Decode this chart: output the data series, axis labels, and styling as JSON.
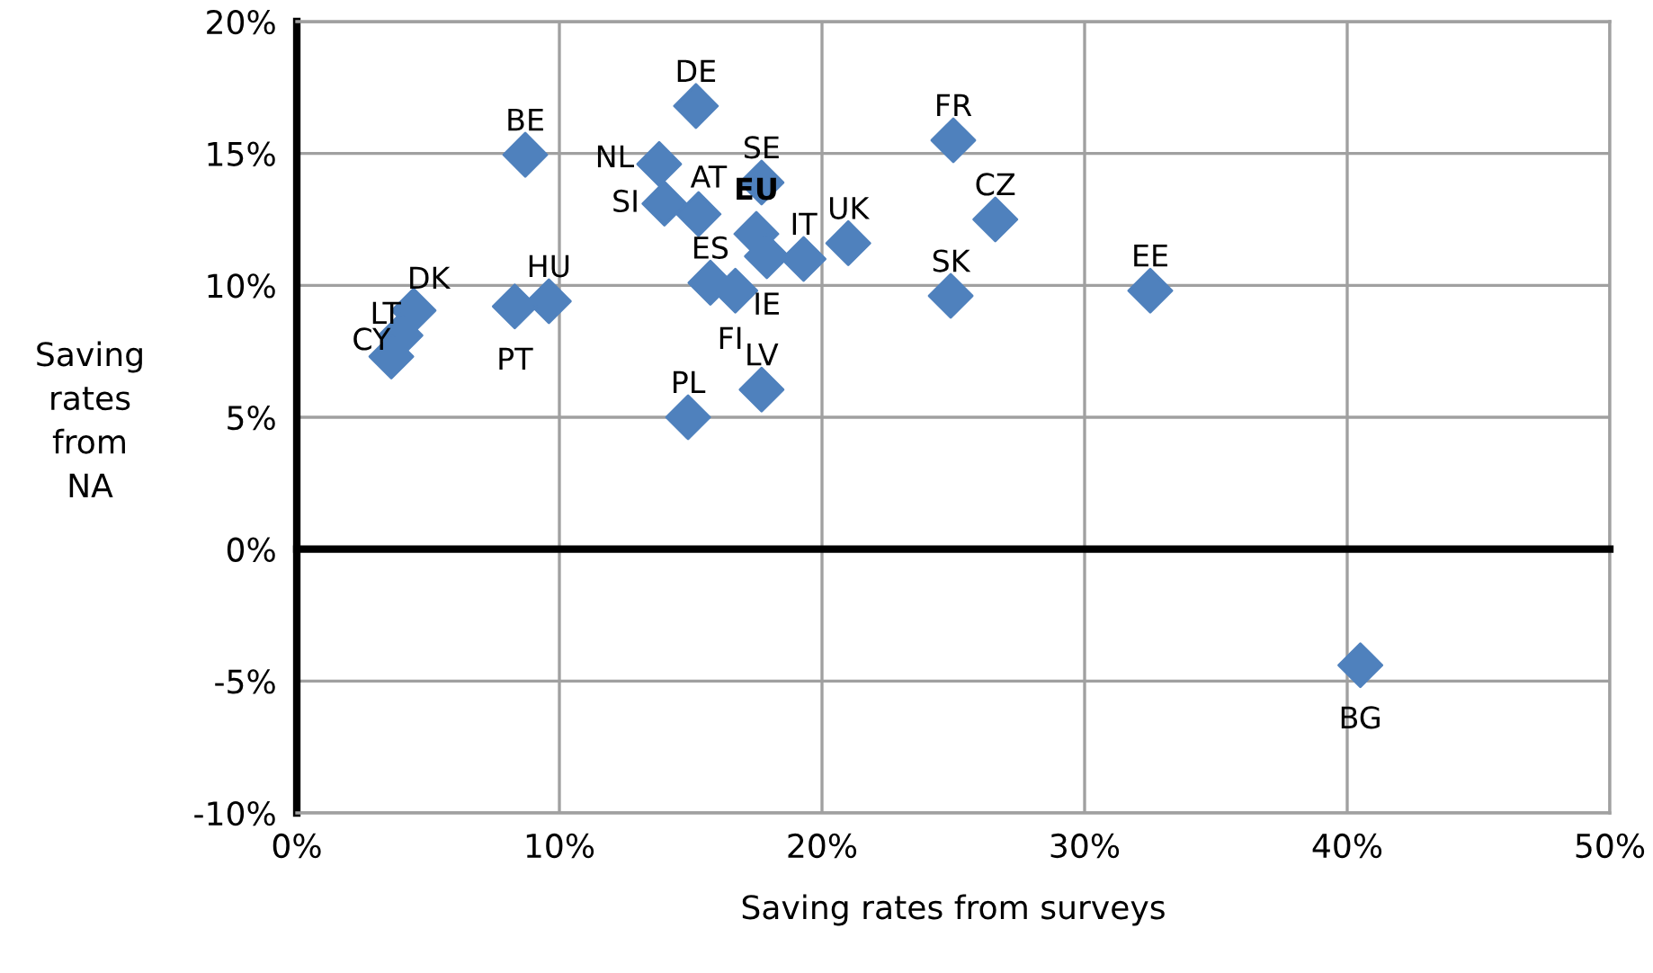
{
  "chart_data": {
    "type": "scatter",
    "xlabel": "Saving rates from surveys",
    "ylabel": "Saving rates from NA",
    "series": [
      {
        "color": "#4f81bd",
        "x": [
          8.7,
          15.2,
          17.7,
          25.0,
          13.8,
          15.3,
          14.0,
          17.5,
          26.6,
          19.3,
          21.0,
          4.45,
          9.6,
          3.95,
          3.6,
          15.75,
          24.9,
          32.5,
          17.9,
          16.7,
          17.7,
          8.3,
          14.9,
          40.5
        ],
        "values": [
          14.95,
          16.8,
          13.9,
          15.5,
          14.6,
          12.7,
          13.1,
          11.95,
          12.5,
          11.0,
          11.6,
          9.05,
          9.4,
          8.1,
          7.3,
          10.1,
          9.6,
          9.8,
          11.1,
          9.8,
          6.05,
          9.2,
          5.0,
          -4.4
        ]
      }
    ],
    "annotations": [
      {
        "text": "BE",
        "x": 8.7,
        "y": 14.95
      },
      {
        "text": "DE",
        "x": 15.2,
        "y": 16.8
      },
      {
        "text": "SE",
        "x": 17.7,
        "y": 13.9
      },
      {
        "text": "FR",
        "x": 25.0,
        "y": 15.5
      },
      {
        "text": "NL",
        "x": 13.8,
        "y": 14.6
      },
      {
        "text": "AT",
        "x": 15.3,
        "y": 12.7
      },
      {
        "text": "SI",
        "x": 14.0,
        "y": 13.1
      },
      {
        "text": "EU",
        "x": 17.5,
        "y": 11.95
      },
      {
        "text": "CZ",
        "x": 26.6,
        "y": 12.5
      },
      {
        "text": "IT",
        "x": 19.3,
        "y": 11.0
      },
      {
        "text": "UK",
        "x": 21.0,
        "y": 11.6
      },
      {
        "text": "DK",
        "x": 4.45,
        "y": 9.05
      },
      {
        "text": "HU",
        "x": 9.6,
        "y": 9.4
      },
      {
        "text": "LT",
        "x": 3.95,
        "y": 8.1
      },
      {
        "text": "CY",
        "x": 3.6,
        "y": 7.3
      },
      {
        "text": "ES",
        "x": 15.75,
        "y": 10.1
      },
      {
        "text": "SK",
        "x": 24.9,
        "y": 9.6
      },
      {
        "text": "EE",
        "x": 32.5,
        "y": 9.8
      },
      {
        "text": "IE",
        "x": 17.9,
        "y": 11.1
      },
      {
        "text": "FI",
        "x": 16.7,
        "y": 9.8
      },
      {
        "text": "LV",
        "x": 17.7,
        "y": 6.05
      },
      {
        "text": "PT",
        "x": 8.3,
        "y": 9.2
      },
      {
        "text": "PL",
        "x": 14.9,
        "y": 5.0
      },
      {
        "text": "BG",
        "x": 40.5,
        "y": -4.4
      }
    ],
    "xlim": [
      0,
      50
    ],
    "ylim": [
      -10,
      20
    ],
    "xticks": [
      {
        "value": 0,
        "label": "0%"
      },
      {
        "value": 10,
        "label": "10%"
      },
      {
        "value": 20,
        "label": "20%"
      },
      {
        "value": 30,
        "label": "30%"
      },
      {
        "value": 40,
        "label": "40%"
      },
      {
        "value": 50,
        "label": "50%"
      }
    ],
    "yticks": [
      {
        "value": -10,
        "label": "-10%"
      },
      {
        "value": -5,
        "label": "-5%"
      },
      {
        "value": 0,
        "label": "0%"
      },
      {
        "value": 5,
        "label": "5%"
      },
      {
        "value": 10,
        "label": "10%"
      },
      {
        "value": 15,
        "label": "15%"
      },
      {
        "value": 20,
        "label": "20%"
      }
    ],
    "ref_lines": [
      {
        "axis": "y",
        "value": 0,
        "color": "#000000"
      }
    ],
    "grid": true,
    "marker": "diamond",
    "legend": false
  }
}
